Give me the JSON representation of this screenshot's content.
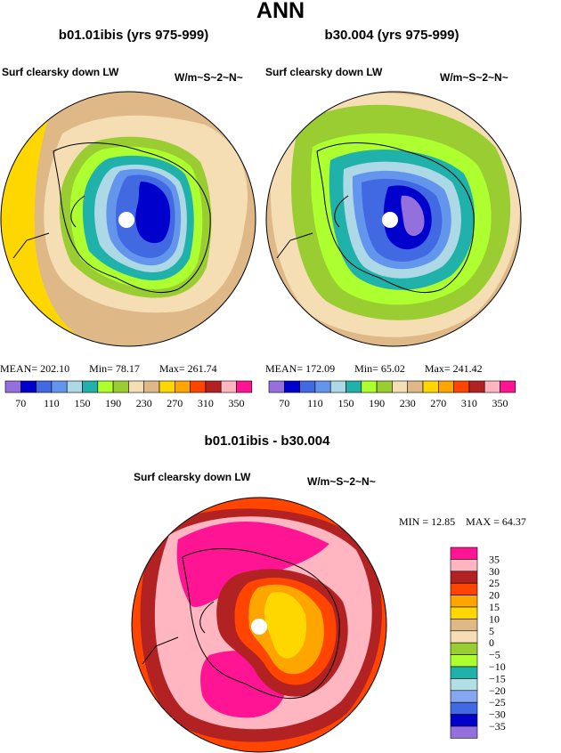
{
  "page_title": "ANN",
  "colors": {
    "scale": [
      "#9370db",
      "#0000cd",
      "#4169e1",
      "#6495ed",
      "#add8e6",
      "#20b2aa",
      "#adff2f",
      "#9acd32",
      "#f5deb3",
      "#deb887",
      "#ffd700",
      "#ffa500",
      "#ff4500",
      "#b22222",
      "#ffb6c1",
      "#ff1493"
    ],
    "diff_scale": [
      "#9370db",
      "#0000cd",
      "#4169e1",
      "#87a6f0",
      "#b0e0e6",
      "#20b2aa",
      "#adff2f",
      "#9acd32",
      "#f5deb3",
      "#deb887",
      "#ffd700",
      "#ffa500",
      "#ff4500",
      "#b22222",
      "#ffb6c1",
      "#ff1493"
    ]
  },
  "panels": [
    {
      "title": "b01.01ibis (yrs 975-999)",
      "variable": "Surf clearsky down LW",
      "units": "W/m~S~2~N~",
      "mean_label": "MEAN=",
      "mean": "202.10",
      "min_label": "Min=",
      "min": "78.17",
      "max_label": "Max=",
      "max": "261.74",
      "ticks": [
        "70",
        "110",
        "150",
        "190",
        "230",
        "270",
        "310",
        "350"
      ]
    },
    {
      "title": "b30.004 (yrs 975-999)",
      "variable": "Surf clearsky down LW",
      "units": "W/m~S~2~N~",
      "mean_label": "MEAN=",
      "mean": "172.09",
      "min_label": "Min=",
      "min": "65.02",
      "max_label": "Max=",
      "max": "241.42",
      "ticks": [
        "70",
        "110",
        "150",
        "190",
        "230",
        "270",
        "310",
        "350"
      ]
    }
  ],
  "diff": {
    "title": "b01.01ibis - b30.004",
    "variable": "Surf clearsky down LW",
    "units": "W/m~S~2~N~",
    "min_label": "MIN =",
    "min": "12.85",
    "max_label": "MAX =",
    "max": "64.37",
    "legend_labels": [
      "35",
      "30",
      "25",
      "20",
      "15",
      "10",
      "5",
      "0",
      "−5",
      "−10",
      "−15",
      "−20",
      "−25",
      "−30",
      "−35"
    ]
  }
}
